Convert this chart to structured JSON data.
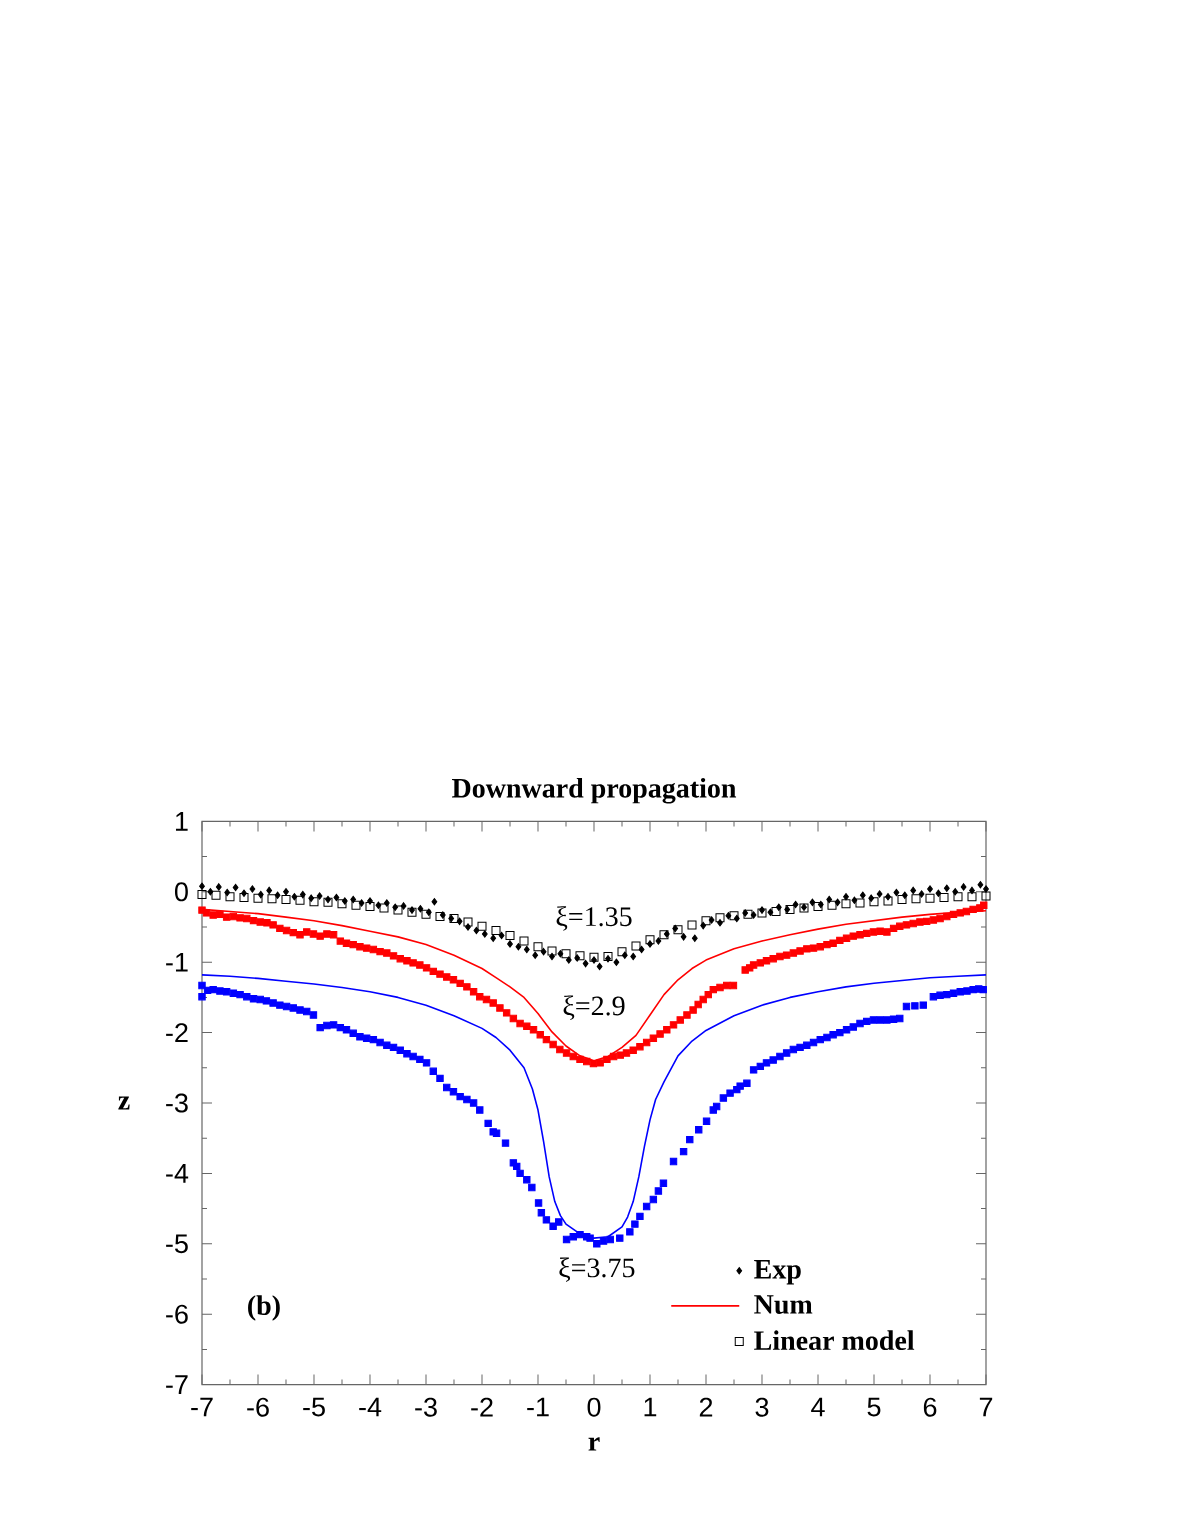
{
  "chart_data": {
    "type": "scatter",
    "title": "Downward propagation",
    "xlabel": "r",
    "ylabel": "z",
    "xlim": [
      -7,
      7
    ],
    "ylim": [
      -7,
      1
    ],
    "xticks": [
      -7,
      {
        "value": -6.5,
        "label": null
      },
      -6,
      {
        "value": -5.5,
        "label": null
      },
      -5,
      {
        "value": -4.5,
        "label": null
      },
      -4,
      {
        "value": -3.5,
        "label": null
      },
      -3,
      {
        "value": -2.5,
        "label": null
      },
      -2,
      {
        "value": -1.5,
        "label": null
      },
      -1,
      {
        "value": -0.5,
        "label": null
      },
      0,
      {
        "value": 0.5,
        "label": null
      },
      1,
      {
        "value": 1.5,
        "label": null
      },
      2,
      {
        "value": 2.5,
        "label": null
      },
      3,
      {
        "value": 3.5,
        "label": null
      },
      4,
      {
        "value": 4.5,
        "label": null
      },
      5,
      {
        "value": 5.5,
        "label": null
      },
      6,
      {
        "value": 6.5,
        "label": null
      },
      7
    ],
    "yticks": [
      -7,
      {
        "value": -6.5,
        "label": null
      },
      -6,
      {
        "value": -5.5,
        "label": null
      },
      -5,
      {
        "value": -4.5,
        "label": null
      },
      -4,
      {
        "value": -3.5,
        "label": null
      },
      -3,
      {
        "value": -2.5,
        "label": null
      },
      -2,
      {
        "value": -1.5,
        "label": null
      },
      -1,
      {
        "value": -0.5,
        "label": null
      },
      0,
      {
        "value": 0.5,
        "label": null
      },
      1
    ],
    "legend": "bottom right",
    "series": [
      {
        "color": "#ff0000",
        "marker": "square",
        "x": [
          -7.0,
          -6.92,
          -6.8,
          -6.68,
          -6.56,
          -6.44,
          -6.32,
          -6.2,
          -6.08,
          -5.96,
          -5.84,
          -5.73,
          -5.61,
          -5.49,
          -5.37,
          -5.25,
          -5.13,
          -5.01,
          -4.89,
          -4.77,
          -4.65,
          -4.53,
          -4.42,
          -4.3,
          -4.18,
          -4.06,
          -3.94,
          -3.82,
          -3.7,
          -3.58,
          -3.46,
          -3.34,
          -3.23,
          -3.11,
          -2.99,
          -2.87,
          -2.75,
          -2.63,
          -2.51,
          -2.39,
          -2.27,
          -2.15,
          -2.04,
          -1.92,
          -1.8,
          -1.68,
          -1.56,
          -1.44,
          -1.32,
          -1.2,
          -1.08,
          -0.96,
          -0.85,
          -0.73,
          -0.61,
          -0.49,
          -0.37,
          -0.25,
          -0.13,
          -0.01,
          0.11,
          0.23,
          0.35,
          0.47,
          0.58,
          0.7,
          0.82,
          0.94,
          1.06,
          1.18,
          1.3,
          1.42,
          1.54,
          1.66,
          1.77,
          1.86,
          1.95,
          2.04,
          2.13,
          2.25,
          2.37,
          2.49,
          2.7,
          2.78,
          2.85,
          2.97,
          3.08,
          3.2,
          3.32,
          3.44,
          3.56,
          3.68,
          3.8,
          3.92,
          4.04,
          4.16,
          4.27,
          4.39,
          4.51,
          4.63,
          4.75,
          4.87,
          4.99,
          5.11,
          5.23,
          5.35,
          5.46,
          5.58,
          5.7,
          5.82,
          5.94,
          6.06,
          6.18,
          6.3,
          6.42,
          6.54,
          6.65,
          6.77,
          6.89,
          6.96
        ],
        "values": [
          -0.26,
          -0.3,
          -0.33,
          -0.32,
          -0.36,
          -0.35,
          -0.37,
          -0.38,
          -0.41,
          -0.43,
          -0.44,
          -0.47,
          -0.52,
          -0.55,
          -0.58,
          -0.61,
          -0.57,
          -0.6,
          -0.63,
          -0.6,
          -0.61,
          -0.7,
          -0.73,
          -0.75,
          -0.78,
          -0.8,
          -0.82,
          -0.85,
          -0.87,
          -0.91,
          -0.95,
          -0.98,
          -1.01,
          -1.04,
          -1.08,
          -1.13,
          -1.17,
          -1.21,
          -1.25,
          -1.3,
          -1.35,
          -1.42,
          -1.49,
          -1.53,
          -1.58,
          -1.65,
          -1.72,
          -1.8,
          -1.87,
          -1.91,
          -1.96,
          -2.03,
          -2.1,
          -2.17,
          -2.24,
          -2.29,
          -2.34,
          -2.38,
          -2.41,
          -2.44,
          -2.43,
          -2.38,
          -2.34,
          -2.32,
          -2.29,
          -2.25,
          -2.2,
          -2.14,
          -2.08,
          -2.02,
          -1.96,
          -1.89,
          -1.82,
          -1.75,
          -1.68,
          -1.6,
          -1.53,
          -1.46,
          -1.39,
          -1.36,
          -1.33,
          -1.33,
          -1.11,
          -1.08,
          -1.04,
          -1.01,
          -0.98,
          -0.95,
          -0.92,
          -0.9,
          -0.87,
          -0.84,
          -0.81,
          -0.8,
          -0.78,
          -0.75,
          -0.73,
          -0.69,
          -0.66,
          -0.63,
          -0.61,
          -0.59,
          -0.57,
          -0.56,
          -0.57,
          -0.52,
          -0.49,
          -0.47,
          -0.45,
          -0.43,
          -0.42,
          -0.4,
          -0.38,
          -0.35,
          -0.32,
          -0.3,
          -0.28,
          -0.25,
          -0.23,
          -0.19
        ]
      },
      {
        "color": "#0000ff",
        "marker": "square",
        "x": [
          -7.0,
          -7.0,
          -6.9,
          -6.8,
          -6.68,
          -6.56,
          -6.44,
          -6.32,
          -6.2,
          -6.08,
          -5.96,
          -5.85,
          -5.73,
          -5.61,
          -5.49,
          -5.37,
          -5.25,
          -5.13,
          -5.01,
          -4.89,
          -4.77,
          -4.65,
          -4.53,
          -4.42,
          -4.3,
          -4.18,
          -4.06,
          -3.94,
          -3.82,
          -3.7,
          -3.58,
          -3.46,
          -3.34,
          -3.23,
          -3.11,
          -2.99,
          -2.87,
          -2.75,
          -2.63,
          -2.51,
          -2.39,
          -2.27,
          -2.15,
          -2.04,
          -1.89,
          -1.8,
          -1.74,
          -1.58,
          -1.44,
          -1.38,
          -1.32,
          -1.2,
          -1.11,
          -0.99,
          -0.94,
          -0.85,
          -0.73,
          -0.63,
          -0.49,
          -0.37,
          -0.25,
          -0.13,
          -0.07,
          0.05,
          0.17,
          0.29,
          0.46,
          0.64,
          0.73,
          0.82,
          0.94,
          1.06,
          1.15,
          1.24,
          1.42,
          1.6,
          1.71,
          1.87,
          2.01,
          2.13,
          2.19,
          2.31,
          2.43,
          2.55,
          2.61,
          2.73,
          2.85,
          2.97,
          3.08,
          3.2,
          3.32,
          3.44,
          3.56,
          3.68,
          3.8,
          3.92,
          4.04,
          4.16,
          4.27,
          4.39,
          4.51,
          4.63,
          4.75,
          4.87,
          4.99,
          5.11,
          5.23,
          5.35,
          5.46,
          5.58,
          5.73,
          5.88,
          6.06,
          6.18,
          6.3,
          6.42,
          6.54,
          6.66,
          6.77,
          6.87,
          6.95
        ],
        "values": [
          -1.33,
          -1.49,
          -1.4,
          -1.39,
          -1.41,
          -1.42,
          -1.44,
          -1.46,
          -1.49,
          -1.52,
          -1.53,
          -1.55,
          -1.58,
          -1.61,
          -1.63,
          -1.65,
          -1.68,
          -1.7,
          -1.75,
          -1.93,
          -1.9,
          -1.89,
          -1.93,
          -1.96,
          -2.01,
          -2.06,
          -2.08,
          -2.1,
          -2.14,
          -2.18,
          -2.21,
          -2.25,
          -2.3,
          -2.34,
          -2.38,
          -2.43,
          -2.55,
          -2.65,
          -2.78,
          -2.84,
          -2.91,
          -2.95,
          -3.0,
          -3.1,
          -3.29,
          -3.41,
          -3.43,
          -3.57,
          -3.85,
          -3.9,
          -4.0,
          -4.09,
          -4.2,
          -4.42,
          -4.56,
          -4.66,
          -4.75,
          -4.69,
          -4.94,
          -4.9,
          -4.87,
          -4.9,
          -4.92,
          -5.0,
          -4.96,
          -4.94,
          -4.92,
          -4.83,
          -4.72,
          -4.61,
          -4.47,
          -4.37,
          -4.25,
          -4.14,
          -3.83,
          -3.69,
          -3.52,
          -3.38,
          -3.26,
          -3.1,
          -3.05,
          -2.93,
          -2.86,
          -2.81,
          -2.76,
          -2.72,
          -2.53,
          -2.48,
          -2.43,
          -2.39,
          -2.34,
          -2.29,
          -2.24,
          -2.21,
          -2.18,
          -2.14,
          -2.1,
          -2.07,
          -2.03,
          -2.0,
          -1.96,
          -1.92,
          -1.87,
          -1.84,
          -1.82,
          -1.82,
          -1.82,
          -1.81,
          -1.8,
          -1.63,
          -1.62,
          -1.61,
          -1.49,
          -1.47,
          -1.46,
          -1.44,
          -1.42,
          -1.41,
          -1.39,
          -1.38,
          -1.39
        ]
      },
      {
        "name": "Exp",
        "color": "#000000",
        "marker": "diamond",
        "x": [
          -7.0,
          -6.85,
          -6.7,
          -6.55,
          -6.4,
          -6.25,
          -6.1,
          -5.95,
          -5.8,
          -5.65,
          -5.5,
          -5.35,
          -5.2,
          -5.05,
          -4.9,
          -4.75,
          -4.6,
          -4.45,
          -4.3,
          -4.15,
          -4.0,
          -3.85,
          -3.7,
          -3.55,
          -3.4,
          -3.25,
          -3.1,
          -2.95,
          -2.85,
          -2.7,
          -2.55,
          -2.4,
          -2.25,
          -2.1,
          -1.95,
          -1.8,
          -1.65,
          -1.5,
          -1.35,
          -1.2,
          -1.05,
          -0.9,
          -0.75,
          -0.6,
          -0.45,
          -0.3,
          -0.15,
          0.0,
          0.1,
          0.25,
          0.4,
          0.55,
          0.7,
          0.85,
          1.0,
          1.15,
          1.3,
          1.45,
          1.6,
          1.8,
          1.95,
          2.1,
          2.25,
          2.4,
          2.55,
          2.7,
          2.85,
          3.0,
          3.15,
          3.3,
          3.45,
          3.6,
          3.75,
          3.9,
          4.05,
          4.2,
          4.35,
          4.5,
          4.65,
          4.8,
          4.95,
          5.1,
          5.25,
          5.4,
          5.55,
          5.7,
          5.85,
          6.0,
          6.15,
          6.3,
          6.45,
          6.6,
          6.75,
          6.9,
          7.0
        ],
        "values": [
          0.08,
          0.0,
          0.07,
          -0.01,
          0.06,
          -0.02,
          0.04,
          -0.04,
          0.02,
          -0.05,
          0.0,
          -0.07,
          -0.04,
          -0.09,
          -0.06,
          -0.11,
          -0.08,
          -0.13,
          -0.11,
          -0.16,
          -0.13,
          -0.19,
          -0.16,
          -0.22,
          -0.2,
          -0.26,
          -0.24,
          -0.29,
          -0.14,
          -0.33,
          -0.38,
          -0.42,
          -0.5,
          -0.55,
          -0.6,
          -0.66,
          -0.62,
          -0.74,
          -0.78,
          -0.82,
          -0.9,
          -0.85,
          -0.92,
          -0.88,
          -0.97,
          -0.94,
          -1.02,
          -0.97,
          -1.06,
          -0.95,
          -1.0,
          -0.9,
          -0.92,
          -0.82,
          -0.74,
          -0.7,
          -0.6,
          -0.52,
          -0.64,
          -0.66,
          -0.48,
          -0.4,
          -0.44,
          -0.34,
          -0.38,
          -0.3,
          -0.33,
          -0.26,
          -0.29,
          -0.22,
          -0.25,
          -0.18,
          -0.22,
          -0.15,
          -0.18,
          -0.11,
          -0.15,
          -0.07,
          -0.12,
          -0.05,
          -0.09,
          -0.03,
          -0.07,
          -0.01,
          -0.05,
          0.02,
          -0.03,
          0.04,
          -0.02,
          0.05,
          0.0,
          0.07,
          0.02,
          0.1,
          0.04
        ]
      },
      {
        "name": "Num",
        "type": "line",
        "color": "#ff0000",
        "x": [
          -7,
          -6.5,
          -6,
          -5.5,
          -5,
          -4.5,
          -4,
          -3.5,
          -3,
          -2.5,
          -2,
          -1.75,
          -1.5,
          -1.25,
          -1,
          -0.75,
          -0.5,
          -0.25,
          0,
          0.25,
          0.5,
          0.75,
          1,
          1.25,
          1.5,
          1.75,
          2,
          2.5,
          3,
          3.5,
          4,
          4.5,
          5,
          5.5,
          6,
          6.5,
          7
        ],
        "values": [
          -0.25,
          -0.28,
          -0.31,
          -0.36,
          -0.41,
          -0.48,
          -0.56,
          -0.64,
          -0.75,
          -0.9,
          -1.09,
          -1.22,
          -1.35,
          -1.5,
          -1.73,
          -1.99,
          -2.19,
          -2.33,
          -2.4,
          -2.34,
          -2.21,
          -2.04,
          -1.75,
          -1.46,
          -1.25,
          -1.09,
          -0.97,
          -0.81,
          -0.7,
          -0.61,
          -0.53,
          -0.46,
          -0.41,
          -0.36,
          -0.32,
          -0.29,
          -0.27
        ]
      },
      {
        "name": "Linear model",
        "color": "#000000",
        "marker": "square",
        "x": [
          -7,
          -6.75,
          -6.5,
          -6.25,
          -6,
          -5.75,
          -5.5,
          -5.25,
          -5,
          -4.75,
          -4.5,
          -4.25,
          -4,
          -3.75,
          -3.5,
          -3.25,
          -3,
          -2.75,
          -2.5,
          -2.25,
          -2,
          -1.75,
          -1.5,
          -1.25,
          -1,
          -0.75,
          -0.5,
          -0.25,
          0,
          0.25,
          0.5,
          0.75,
          1,
          1.25,
          1.5,
          1.75,
          2,
          2.25,
          2.5,
          2.75,
          3,
          3.25,
          3.5,
          3.75,
          4,
          4.25,
          4.5,
          4.75,
          5,
          5.25,
          5.5,
          5.75,
          6,
          6.25,
          6.5,
          6.75,
          7
        ],
        "values": [
          -0.04,
          -0.05,
          -0.07,
          -0.08,
          -0.09,
          -0.1,
          -0.11,
          -0.12,
          -0.14,
          -0.15,
          -0.17,
          -0.19,
          -0.21,
          -0.23,
          -0.26,
          -0.29,
          -0.32,
          -0.35,
          -0.38,
          -0.43,
          -0.49,
          -0.55,
          -0.62,
          -0.7,
          -0.78,
          -0.84,
          -0.88,
          -0.91,
          -0.93,
          -0.92,
          -0.85,
          -0.77,
          -0.68,
          -0.61,
          -0.54,
          -0.47,
          -0.41,
          -0.37,
          -0.34,
          -0.32,
          -0.3,
          -0.28,
          -0.25,
          -0.23,
          -0.21,
          -0.19,
          -0.17,
          -0.16,
          -0.14,
          -0.13,
          -0.11,
          -0.1,
          -0.09,
          -0.08,
          -0.07,
          -0.07,
          -0.06
        ]
      },
      {
        "type": "line",
        "color": "#0000ff",
        "x": [
          -7,
          -6.5,
          -6,
          -5.5,
          -5,
          -4.5,
          -4,
          -3.5,
          -3,
          -2.5,
          -2,
          -1.75,
          -1.5,
          -1.25,
          -1.1,
          -1,
          -0.9,
          -0.8,
          -0.7,
          -0.6,
          -0.5,
          -0.25,
          0,
          0.25,
          0.5,
          0.6,
          0.7,
          0.8,
          0.9,
          1,
          1.1,
          1.25,
          1.5,
          1.75,
          2,
          2.5,
          3,
          3.5,
          4,
          4.5,
          5,
          5.5,
          6,
          6.5,
          7
        ],
        "values": [
          -1.18,
          -1.2,
          -1.23,
          -1.27,
          -1.31,
          -1.36,
          -1.42,
          -1.5,
          -1.61,
          -1.76,
          -1.94,
          -2.07,
          -2.25,
          -2.5,
          -2.8,
          -3.1,
          -3.55,
          -4.05,
          -4.4,
          -4.6,
          -4.72,
          -4.86,
          -4.92,
          -4.9,
          -4.76,
          -4.62,
          -4.4,
          -4.05,
          -3.62,
          -3.24,
          -2.95,
          -2.7,
          -2.33,
          -2.12,
          -1.97,
          -1.76,
          -1.61,
          -1.5,
          -1.42,
          -1.35,
          -1.3,
          -1.26,
          -1.22,
          -1.2,
          -1.18
        ]
      }
    ],
    "annotations": [
      "ξ=1.35",
      "ξ=2.9",
      "ξ=3.75",
      "(b)"
    ]
  }
}
